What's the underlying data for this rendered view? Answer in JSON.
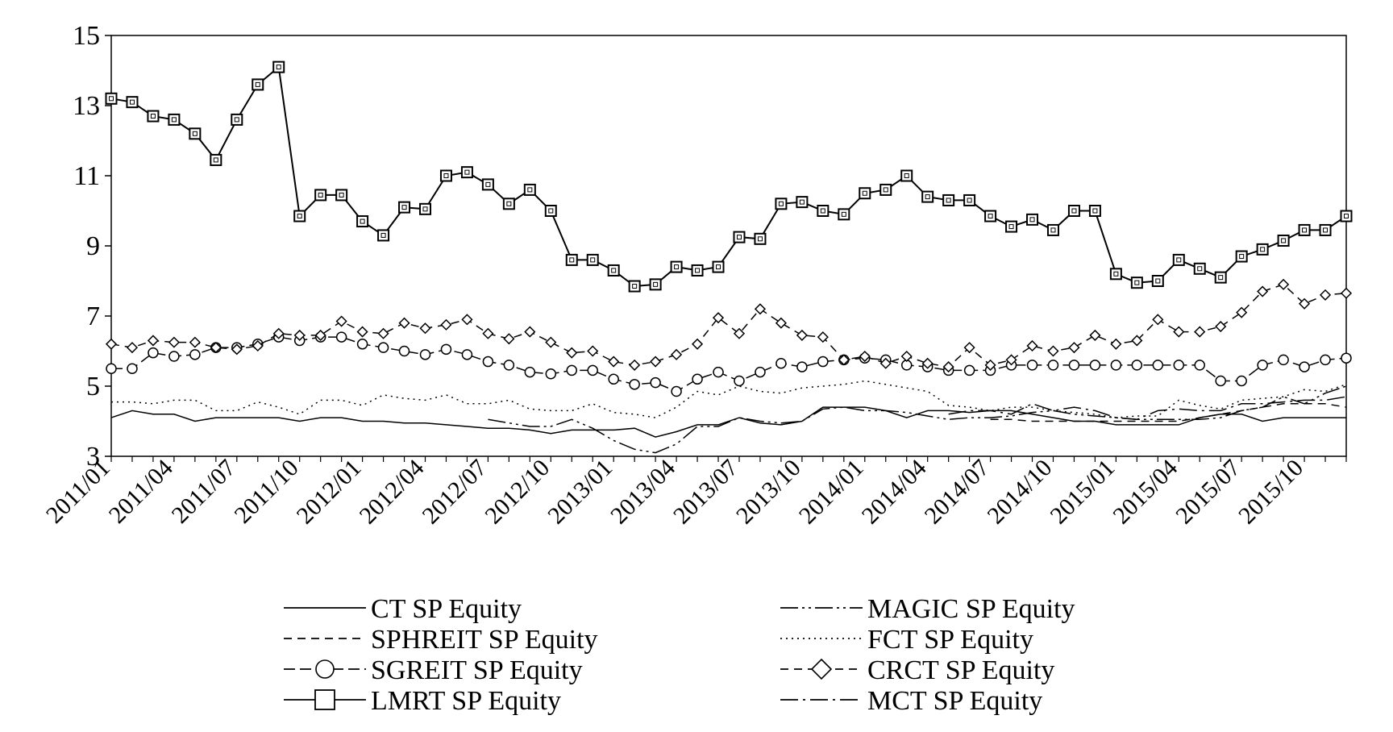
{
  "chart_data": {
    "type": "line",
    "title": "",
    "xlabel": "",
    "ylabel": "",
    "ylim": [
      3,
      15
    ],
    "yticks": [
      "3",
      "5",
      "7",
      "9",
      "11",
      "13",
      "15"
    ],
    "x_tick_labels": [
      "2011/01",
      "2011/04",
      "2011/07",
      "2011/10",
      "2012/01",
      "2012/04",
      "2012/07",
      "2012/10",
      "2013/01",
      "2013/04",
      "2013/07",
      "2013/10",
      "2014/01",
      "2014/04",
      "2014/07",
      "2014/10",
      "2015/01",
      "2015/04",
      "2015/07",
      "2015/10"
    ],
    "x": [
      "2011/01",
      "2011/02",
      "2011/03",
      "2011/04",
      "2011/05",
      "2011/06",
      "2011/07",
      "2011/08",
      "2011/09",
      "2011/10",
      "2011/11",
      "2011/12",
      "2012/01",
      "2012/02",
      "2012/03",
      "2012/04",
      "2012/05",
      "2012/06",
      "2012/07",
      "2012/08",
      "2012/09",
      "2012/10",
      "2012/11",
      "2012/12",
      "2013/01",
      "2013/02",
      "2013/03",
      "2013/04",
      "2013/05",
      "2013/06",
      "2013/07",
      "2013/08",
      "2013/09",
      "2013/10",
      "2013/11",
      "2013/12",
      "2014/01",
      "2014/02",
      "2014/03",
      "2014/04",
      "2014/05",
      "2014/06",
      "2014/07",
      "2014/08",
      "2014/09",
      "2014/10",
      "2014/11",
      "2014/12",
      "2015/01",
      "2015/02",
      "2015/03",
      "2015/04",
      "2015/05",
      "2015/06",
      "2015/07",
      "2015/08",
      "2015/09",
      "2015/10",
      "2015/11",
      "2015/12"
    ],
    "grid": false,
    "legend_position": "bottom",
    "series": [
      {
        "name": "CT SP Equity",
        "style": "solid",
        "marker": "none",
        "values": [
          4.1,
          4.3,
          4.2,
          4.2,
          4.0,
          4.1,
          4.1,
          4.1,
          4.1,
          4.0,
          4.1,
          4.1,
          4.0,
          4.0,
          3.95,
          3.95,
          3.9,
          3.85,
          3.8,
          3.8,
          3.75,
          3.65,
          3.75,
          3.75,
          3.75,
          3.8,
          3.55,
          3.7,
          3.9,
          3.9,
          4.1,
          3.95,
          3.9,
          4.0,
          4.4,
          4.4,
          4.4,
          4.3,
          4.1,
          4.3,
          4.3,
          4.25,
          4.3,
          4.3,
          4.2,
          4.1,
          4.0,
          4.0,
          3.9,
          3.9,
          3.9,
          3.9,
          4.1,
          4.2,
          4.2,
          4.0,
          4.1,
          4.1,
          4.1,
          4.1
        ]
      },
      {
        "name": "SPHREIT SP Equity",
        "style": "dashed",
        "marker": "none",
        "values": [
          null,
          null,
          null,
          null,
          null,
          null,
          null,
          null,
          null,
          null,
          null,
          null,
          null,
          null,
          null,
          null,
          null,
          null,
          null,
          null,
          null,
          null,
          null,
          null,
          null,
          null,
          null,
          null,
          null,
          null,
          null,
          null,
          null,
          null,
          null,
          null,
          null,
          null,
          null,
          null,
          null,
          null,
          4.05,
          4.05,
          4.0,
          4.0,
          4.0,
          4.0,
          4.0,
          4.0,
          4.0,
          4.0,
          4.1,
          4.2,
          4.3,
          4.4,
          4.5,
          4.5,
          4.5,
          4.4
        ]
      },
      {
        "name": "SGREIT SP Equity",
        "style": "solid-dash",
        "marker": "circle",
        "values": [
          5.5,
          5.5,
          5.95,
          5.85,
          5.9,
          6.1,
          6.1,
          6.2,
          6.4,
          6.3,
          6.4,
          6.4,
          6.2,
          6.1,
          6.0,
          5.9,
          6.05,
          5.9,
          5.7,
          5.6,
          5.4,
          5.35,
          5.45,
          5.45,
          5.2,
          5.05,
          5.1,
          4.85,
          5.2,
          5.4,
          5.15,
          5.4,
          5.65,
          5.55,
          5.7,
          5.75,
          5.8,
          5.75,
          5.6,
          5.55,
          5.45,
          5.45,
          5.45,
          5.6,
          5.6,
          5.6,
          5.6,
          5.6,
          5.6,
          5.6,
          5.6,
          5.6,
          5.6,
          5.15,
          5.15,
          5.6,
          5.75,
          5.55,
          5.75,
          5.8
        ]
      },
      {
        "name": "LMRT SP Equity",
        "style": "solid",
        "marker": "square",
        "values": [
          13.2,
          13.1,
          12.7,
          12.6,
          12.2,
          11.45,
          12.6,
          13.6,
          14.1,
          9.85,
          10.45,
          10.45,
          9.7,
          9.3,
          10.1,
          10.05,
          11.0,
          11.1,
          10.75,
          10.2,
          10.6,
          10.0,
          8.6,
          8.6,
          8.3,
          7.85,
          7.9,
          8.4,
          8.3,
          8.4,
          9.25,
          9.2,
          10.2,
          10.25,
          10.0,
          9.9,
          10.5,
          10.6,
          11.0,
          10.4,
          10.3,
          10.3,
          9.85,
          9.55,
          9.75,
          9.45,
          10.0,
          10.0,
          8.2,
          7.95,
          8.0,
          8.6,
          8.35,
          8.1,
          8.7,
          8.9,
          9.15,
          9.45,
          9.45,
          9.85
        ]
      },
      {
        "name": "MAGIC SP Equity",
        "style": "long-dash-dot-dot",
        "marker": "none",
        "values": [
          null,
          null,
          null,
          null,
          null,
          null,
          null,
          null,
          null,
          null,
          null,
          null,
          null,
          null,
          null,
          null,
          null,
          null,
          4.05,
          3.95,
          3.85,
          3.85,
          4.05,
          3.8,
          3.45,
          3.2,
          3.1,
          3.35,
          3.85,
          3.85,
          4.1,
          4.0,
          3.95,
          4.0,
          4.35,
          4.4,
          4.3,
          4.3,
          4.25,
          4.15,
          4.05,
          4.1,
          4.1,
          4.15,
          4.25,
          4.3,
          4.2,
          4.15,
          4.1,
          4.05,
          4.05,
          4.05,
          4.05,
          4.1,
          4.3,
          4.4,
          4.7,
          4.5,
          4.8,
          5.0
        ]
      },
      {
        "name": "FCT SP Equity",
        "style": "dotted",
        "marker": "none",
        "values": [
          4.55,
          4.55,
          4.5,
          4.6,
          4.6,
          4.3,
          4.3,
          4.55,
          4.4,
          4.2,
          4.6,
          4.6,
          4.45,
          4.75,
          4.65,
          4.6,
          4.75,
          4.5,
          4.5,
          4.6,
          4.35,
          4.3,
          4.3,
          4.5,
          4.25,
          4.2,
          4.1,
          4.4,
          4.85,
          4.75,
          5.0,
          4.85,
          4.8,
          4.95,
          5.0,
          5.05,
          5.15,
          5.05,
          4.95,
          4.85,
          4.45,
          4.4,
          4.3,
          4.4,
          4.4,
          4.3,
          4.25,
          4.2,
          4.1,
          4.15,
          4.15,
          4.6,
          4.45,
          4.35,
          4.6,
          4.65,
          4.7,
          4.9,
          4.85,
          5.05
        ]
      },
      {
        "name": "CRCT SP Equity",
        "style": "dashed",
        "marker": "diamond",
        "values": [
          6.2,
          6.1,
          6.3,
          6.25,
          6.25,
          6.1,
          6.05,
          6.15,
          6.5,
          6.45,
          6.45,
          6.85,
          6.55,
          6.5,
          6.8,
          6.65,
          6.75,
          6.9,
          6.5,
          6.35,
          6.55,
          6.25,
          5.95,
          6.0,
          5.7,
          5.6,
          5.7,
          5.9,
          6.2,
          6.95,
          6.5,
          7.2,
          6.8,
          6.45,
          6.4,
          5.75,
          5.85,
          5.65,
          5.85,
          5.65,
          5.55,
          6.1,
          5.6,
          5.75,
          6.15,
          6.0,
          6.1,
          6.45,
          6.2,
          6.3,
          6.9,
          6.55,
          6.55,
          6.7,
          7.1,
          7.7,
          7.9,
          7.35,
          7.6,
          7.65
        ]
      },
      {
        "name": "MCT SP Equity",
        "style": "long-dash-dot",
        "marker": "none",
        "values": [
          null,
          null,
          null,
          null,
          null,
          null,
          null,
          null,
          null,
          null,
          null,
          null,
          null,
          null,
          null,
          null,
          null,
          null,
          null,
          null,
          null,
          null,
          null,
          null,
          null,
          null,
          null,
          null,
          null,
          null,
          null,
          null,
          null,
          null,
          null,
          null,
          null,
          null,
          null,
          null,
          4.2,
          4.3,
          4.3,
          4.2,
          4.5,
          4.3,
          4.4,
          4.3,
          4.1,
          4.05,
          4.3,
          4.35,
          4.3,
          4.3,
          4.5,
          4.5,
          4.55,
          4.6,
          4.6,
          4.7
        ]
      }
    ]
  }
}
